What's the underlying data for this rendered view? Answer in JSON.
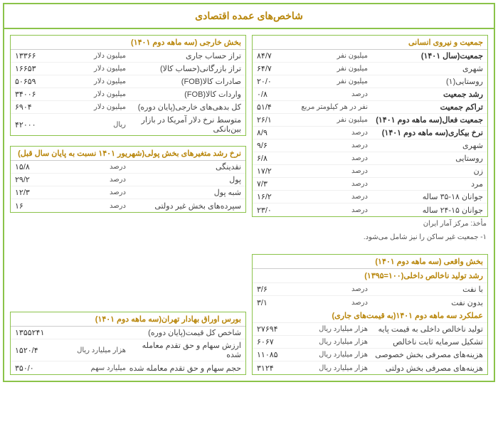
{
  "title": "شاخص‌های عمده اقتصادی",
  "colors": {
    "border": "#8bc34a",
    "heading": "#b8860b",
    "text": "#333"
  },
  "right": {
    "box1": {
      "header": "جمعیت و نیروی انسانی",
      "rows": [
        {
          "label": "جمعیت(سال ۱۴۰۱)",
          "unit": "میلیون نفر",
          "value": "۸۴/۷",
          "bold": true
        },
        {
          "label": "شهری",
          "unit": "میلیون نفر",
          "value": "۶۴/۷"
        },
        {
          "label": "روستایی(۱)",
          "unit": "میلیون نفر",
          "value": "۲۰/۰"
        },
        {
          "label": "رشد جمعیت",
          "unit": "درصد",
          "value": "۰/۸",
          "bold": true
        },
        {
          "label": "تراکم جمعیت",
          "unit": "نفر در هر کیلومتر مربع",
          "value": "۵۱/۴",
          "bold": true
        },
        {
          "label": "جمعیت فعال(سه ماهه دوم ۱۴۰۱)",
          "unit": "میلیون نفر",
          "value": "۲۶/۱",
          "bold": true
        },
        {
          "label": "نرخ بیکاری(سه ماهه دوم ۱۴۰۱)",
          "unit": "درصد",
          "value": "۸/۹",
          "bold": true
        },
        {
          "label": "شهری",
          "unit": "درصد",
          "value": "۹/۶"
        },
        {
          "label": "روستایی",
          "unit": "درصد",
          "value": "۶/۸"
        },
        {
          "label": "زن",
          "unit": "درصد",
          "value": "۱۷/۲"
        },
        {
          "label": "مرد",
          "unit": "درصد",
          "value": "۷/۳"
        },
        {
          "label": "جوانان ۱۸-۳۵ ساله",
          "unit": "درصد",
          "value": "۱۶/۲"
        },
        {
          "label": "جوانان ۱۵-۲۴ ساله",
          "unit": "درصد",
          "value": "۲۳/۰"
        }
      ],
      "footnotes": [
        "مأخذ: مرکز آمار ایران",
        "۱- جمعیت غیر ساکن را نیز شامل می‌شود."
      ]
    },
    "box2": {
      "header": "بخش واقعی (سه ماهه دوم ۱۴۰۱)",
      "sub1": "رشد تولید ناخالص داخلی(۱۰۰=۱۳۹۵)",
      "rows1": [
        {
          "label": "با نفت",
          "unit": "درصد",
          "value": "۳/۶"
        },
        {
          "label": "بدون نفت",
          "unit": "درصد",
          "value": "۳/۱"
        }
      ],
      "sub2": "عملکرد سه ماهه دوم ۱۴۰۱(به قیمت‌های جاری)",
      "rows2": [
        {
          "label": "تولید ناخالص داخلی به قیمت پایه",
          "unit": "هزار میلیارد ریال",
          "value": "۲۷۶۹۴"
        },
        {
          "label": "تشکیل سرمایه ثابت ناخالص",
          "unit": "هزار میلیارد ریال",
          "value": "۶۰۶۷"
        },
        {
          "label": "هزینه‌های مصرفی بخش خصوصی",
          "unit": "هزار میلیارد ریال",
          "value": "۱۱۰۸۵"
        },
        {
          "label": "هزینه‌های مصرفی بخش دولتی",
          "unit": "هزار میلیارد ریال",
          "value": "۳۱۲۴"
        }
      ]
    }
  },
  "left": {
    "box1": {
      "header": "بخش خارجی (سه ماهه دوم ۱۴۰۱)",
      "rows": [
        {
          "label": "تراز حساب جاری",
          "unit": "میلیون دلار",
          "value": "۱۳۳۶۶"
        },
        {
          "label": "تراز بازرگانی(حساب کالا)",
          "unit": "میلیون دلار",
          "value": "۱۶۶۵۳"
        },
        {
          "label": "صادرات کالا(FOB)",
          "unit": "میلیون دلار",
          "value": "۵۰۶۵۹"
        },
        {
          "label": "واردات کالا(FOB)",
          "unit": "میلیون دلار",
          "value": "۳۴۰۰۶"
        },
        {
          "label": "کل بدهی‌های خارجی(پایان دوره)",
          "unit": "میلیون دلار",
          "value": "۶۹۰۴"
        },
        {
          "label": "متوسط نرخ دلار آمریکا در بازار بین‌بانکی",
          "unit": "ریال",
          "value": "۴۲۰۰۰"
        }
      ]
    },
    "box2": {
      "header": "نرخ رشد متغیرهای بخش پولی(شهریور ۱۴۰۱ نسبت به پایان سال قبل)",
      "rows": [
        {
          "label": "نقدینگی",
          "unit": "درصد",
          "value": "۱۵/۸"
        },
        {
          "label": "پول",
          "unit": "درصد",
          "value": "۲۹/۲"
        },
        {
          "label": "شبه پول",
          "unit": "درصد",
          "value": "۱۲/۳"
        },
        {
          "label": "سپرده‌های بخش غیر دولتی",
          "unit": "درصد",
          "value": "۱۶"
        }
      ]
    },
    "box3": {
      "header": "بورس اوراق بهادار تهران(سه ماهه دوم ۱۴۰۱)",
      "rows": [
        {
          "label": "شاخص کل قیمت(پایان دوره)",
          "unit": "",
          "value": "۱۳۵۵۲۴۱"
        },
        {
          "label": "ارزش سهام و حق تقدم معامله شده",
          "unit": "هزار میلیارد ریال",
          "value": "۱۵۲۰/۴"
        },
        {
          "label": "حجم سهام و حق تقدم معامله شده",
          "unit": "میلیارد سهم",
          "value": "۳۵۰/۰"
        }
      ]
    }
  }
}
